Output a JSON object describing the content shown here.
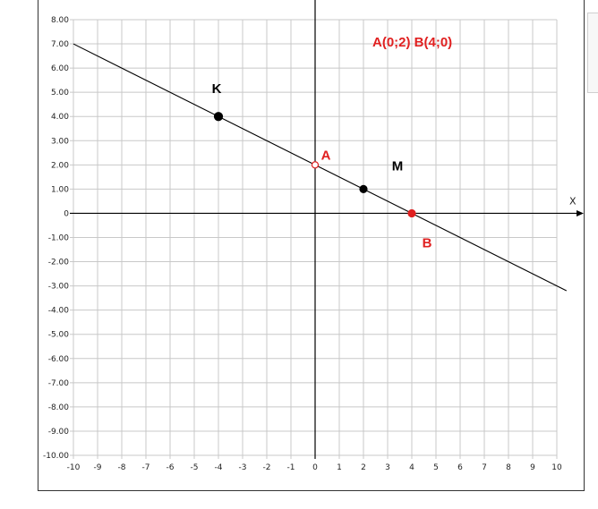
{
  "chart_data": {
    "type": "line",
    "xlim": [
      -10,
      10
    ],
    "ylim": [
      -10,
      8
    ],
    "grid": true,
    "axis_name_x": "X",
    "x_tick_labels": [
      "-10",
      "-9",
      "-8",
      "-7",
      "-6",
      "-5",
      "-4",
      "-3",
      "-2",
      "-1",
      "0",
      "1",
      "2",
      "3",
      "4",
      "5",
      "6",
      "7",
      "8",
      "9",
      "10"
    ],
    "y_tick_labels": [
      "8.00",
      "7.00",
      "6.00",
      "5.00",
      "4.00",
      "3.00",
      "2.00",
      "1.00",
      "0",
      "-1.00",
      "-2.00",
      "-3.00",
      "-4.00",
      "-5.00",
      "-6.00",
      "-7.00",
      "-8.00",
      "-9.00",
      "-10.00"
    ],
    "line": {
      "slope": -0.5,
      "intercept": 2,
      "x_from": -10,
      "x_to": 10.4,
      "color": "#000000"
    },
    "points": [
      {
        "label": "K",
        "x": -4,
        "y": 4,
        "color": "#000000",
        "label_color": "#000000",
        "marker": "filled"
      },
      {
        "label": "A",
        "x": 0,
        "y": 2,
        "color": "#e02020",
        "label_color": "#e02020",
        "marker": "open"
      },
      {
        "label": "M",
        "x": 2,
        "y": 1,
        "color": "#000000",
        "label_color": "#000000",
        "marker": "filled"
      },
      {
        "label": "B",
        "x": 4,
        "y": 0,
        "color": "#e02020",
        "label_color": "#e02020",
        "marker": "filled"
      }
    ],
    "annotation": "A(0;2)  B(4;0)",
    "annotation_color": "#e02020",
    "grid_color": "#c8c8c8",
    "axis_color": "#000000"
  }
}
